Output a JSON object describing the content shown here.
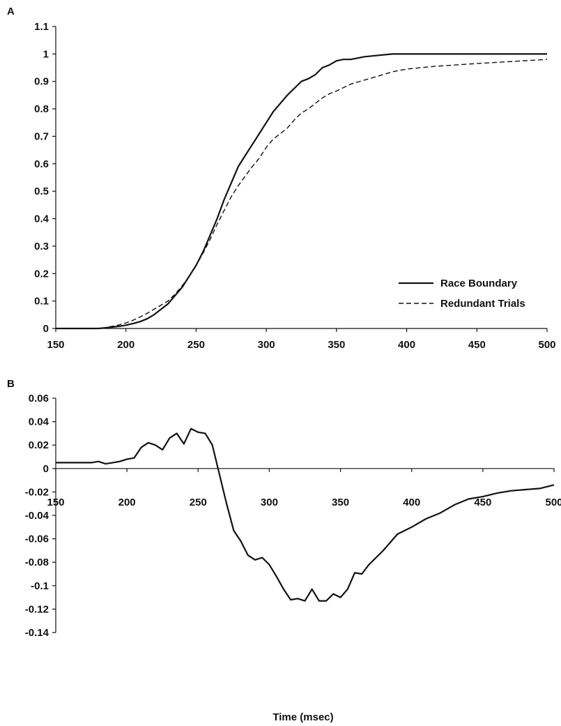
{
  "chart_data": [
    {
      "type": "line",
      "panel_label": "A",
      "title": "",
      "xlabel": "",
      "ylabel": "",
      "xlim": [
        150,
        500
      ],
      "ylim": [
        0,
        1.1
      ],
      "x_ticks": [
        "150",
        "200",
        "250",
        "300",
        "350",
        "400",
        "450",
        "500"
      ],
      "y_ticks": [
        "0",
        "0.1",
        "0.2",
        "0.3",
        "0.4",
        "0.5",
        "0.6",
        "0.7",
        "0.8",
        "0.9",
        "1",
        "1.1"
      ],
      "legend_position": "bottom-right",
      "series": [
        {
          "name": "Race Boundary",
          "style": "solid",
          "x": [
            150,
            160,
            170,
            180,
            185,
            190,
            195,
            200,
            205,
            210,
            215,
            220,
            225,
            230,
            235,
            240,
            245,
            250,
            255,
            260,
            265,
            270,
            275,
            280,
            285,
            290,
            295,
            300,
            305,
            310,
            315,
            320,
            325,
            330,
            335,
            340,
            345,
            350,
            355,
            360,
            365,
            370,
            380,
            390,
            400,
            420,
            450,
            500
          ],
          "y": [
            0,
            0,
            0,
            0,
            0.002,
            0.005,
            0.008,
            0.012,
            0.018,
            0.025,
            0.035,
            0.05,
            0.07,
            0.09,
            0.12,
            0.15,
            0.19,
            0.23,
            0.28,
            0.34,
            0.4,
            0.47,
            0.53,
            0.59,
            0.63,
            0.67,
            0.71,
            0.75,
            0.79,
            0.82,
            0.85,
            0.875,
            0.9,
            0.91,
            0.925,
            0.95,
            0.96,
            0.975,
            0.98,
            0.98,
            0.985,
            0.99,
            0.995,
            1,
            1,
            1,
            1,
            1
          ]
        },
        {
          "name": "Redundant Trials",
          "style": "dashed",
          "x": [
            150,
            160,
            170,
            180,
            185,
            190,
            195,
            200,
            205,
            210,
            215,
            220,
            225,
            230,
            235,
            240,
            245,
            250,
            255,
            260,
            265,
            270,
            275,
            280,
            285,
            290,
            295,
            300,
            305,
            310,
            315,
            320,
            325,
            330,
            335,
            340,
            345,
            350,
            360,
            370,
            380,
            390,
            400,
            420,
            450,
            500
          ],
          "y": [
            0,
            0,
            0,
            0,
            0.003,
            0.008,
            0.013,
            0.02,
            0.03,
            0.042,
            0.055,
            0.07,
            0.085,
            0.1,
            0.125,
            0.155,
            0.19,
            0.23,
            0.275,
            0.325,
            0.38,
            0.43,
            0.48,
            0.52,
            0.555,
            0.59,
            0.62,
            0.66,
            0.69,
            0.71,
            0.73,
            0.76,
            0.785,
            0.8,
            0.82,
            0.84,
            0.855,
            0.865,
            0.89,
            0.905,
            0.92,
            0.935,
            0.945,
            0.955,
            0.965,
            0.98
          ]
        }
      ]
    },
    {
      "type": "line",
      "panel_label": "B",
      "title": "",
      "xlabel": "Time (msec)",
      "ylabel": "",
      "xlim": [
        150,
        500
      ],
      "ylim": [
        -0.14,
        0.06
      ],
      "x_ticks": [
        "150",
        "200",
        "250",
        "300",
        "350",
        "400",
        "450",
        "500"
      ],
      "y_ticks": [
        "0.06",
        "0.04",
        "0.02",
        "0",
        "-0.02",
        "-0.04",
        "-0.06",
        "-0.08",
        "-0.1",
        "-0.12",
        "-0.14"
      ],
      "series": [
        {
          "style": "solid",
          "x": [
            150,
            160,
            170,
            175,
            180,
            185,
            190,
            195,
            200,
            205,
            210,
            215,
            220,
            225,
            230,
            235,
            240,
            245,
            250,
            255,
            260,
            265,
            270,
            275,
            280,
            285,
            290,
            295,
            300,
            305,
            310,
            315,
            320,
            325,
            330,
            335,
            340,
            345,
            350,
            355,
            360,
            365,
            370,
            380,
            390,
            400,
            410,
            420,
            430,
            440,
            450,
            460,
            470,
            480,
            490,
            500
          ],
          "y": [
            0.005,
            0.005,
            0.005,
            0.005,
            0.006,
            0.004,
            0.005,
            0.006,
            0.008,
            0.009,
            0.018,
            0.022,
            0.02,
            0.016,
            0.026,
            0.03,
            0.021,
            0.034,
            0.031,
            0.03,
            0.02,
            -0.005,
            -0.03,
            -0.053,
            -0.062,
            -0.074,
            -0.078,
            -0.076,
            -0.082,
            -0.092,
            -0.103,
            -0.112,
            -0.111,
            -0.113,
            -0.103,
            -0.113,
            -0.113,
            -0.107,
            -0.11,
            -0.103,
            -0.089,
            -0.09,
            -0.082,
            -0.07,
            -0.056,
            -0.05,
            -0.043,
            -0.038,
            -0.031,
            -0.026,
            -0.024,
            -0.021,
            -0.019,
            -0.018,
            -0.017,
            -0.014
          ]
        }
      ]
    }
  ]
}
